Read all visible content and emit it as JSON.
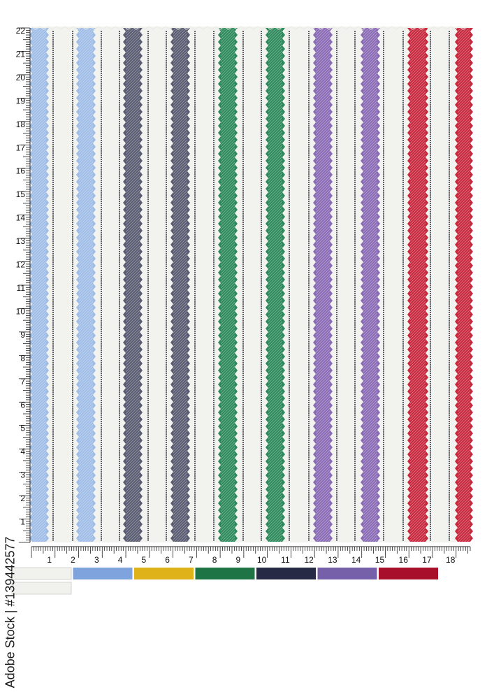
{
  "fabric": {
    "background": "#f2f2ee",
    "pin_line_color": "#3a3c4a",
    "stripes": [
      {
        "name": "light-blue",
        "color": "#9fbde6"
      },
      {
        "name": "light-blue",
        "color": "#9fbde6"
      },
      {
        "name": "navy-grey",
        "color": "#5a5c72"
      },
      {
        "name": "navy-grey",
        "color": "#5a5c72"
      },
      {
        "name": "green",
        "color": "#2e8a5c"
      },
      {
        "name": "green",
        "color": "#2e8a5c"
      },
      {
        "name": "purple",
        "color": "#8a6bb6"
      },
      {
        "name": "purple",
        "color": "#8a6bb6"
      },
      {
        "name": "red",
        "color": "#c8283e"
      },
      {
        "name": "red",
        "color": "#c8283e"
      }
    ]
  },
  "ruler": {
    "vertical_labels": [
      "1",
      "2",
      "3",
      "4",
      "5",
      "6",
      "7",
      "8",
      "9",
      "10",
      "11",
      "12",
      "13",
      "14",
      "15",
      "16",
      "17",
      "18",
      "19",
      "20",
      "21",
      "22"
    ],
    "horizontal_labels": [
      "1",
      "2",
      "3",
      "4",
      "5",
      "6",
      "7",
      "8",
      "9",
      "10",
      "11",
      "12",
      "13",
      "14",
      "15",
      "16",
      "17",
      "18"
    ]
  },
  "palette": {
    "row1": [
      {
        "name": "off-white",
        "color": "#f1f1ee"
      },
      {
        "name": "light-blue",
        "color": "#7fa3dc"
      },
      {
        "name": "mustard",
        "color": "#e0b21a"
      },
      {
        "name": "green",
        "color": "#1e7444"
      },
      {
        "name": "navy",
        "color": "#262a44"
      },
      {
        "name": "purple",
        "color": "#7760aa"
      },
      {
        "name": "red",
        "color": "#a80f2a"
      }
    ],
    "row2": [
      {
        "name": "off-white",
        "color": "#f1f1ee"
      }
    ]
  },
  "stock_id": "Adobe Stock | #139442577"
}
